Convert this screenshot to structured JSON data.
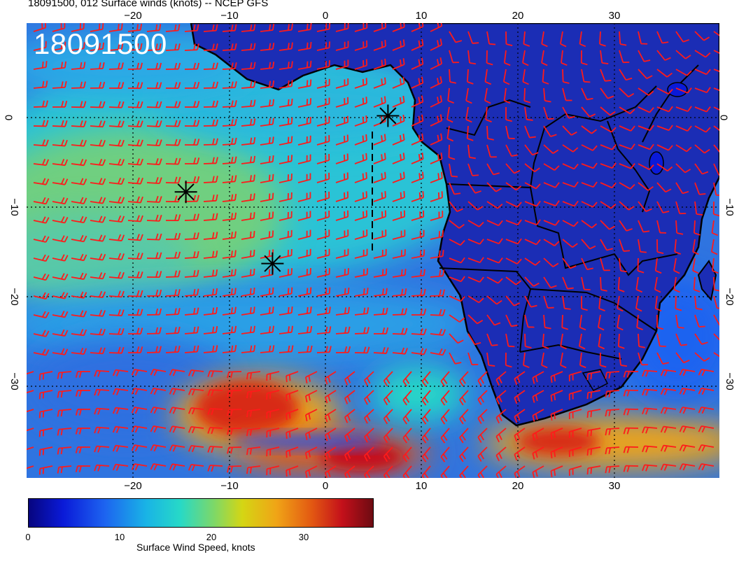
{
  "header": {
    "title": "18091500, 012 Surface winds (knots) -- NCEP GFS"
  },
  "map": {
    "time_label": "18091500",
    "lon_ticks_top": [
      "−20",
      "−10",
      "0",
      "10",
      "20",
      "30"
    ],
    "lon_ticks_bottom": [
      "−20",
      "−10",
      "0",
      "10",
      "20",
      "30"
    ],
    "lat_ticks_left": [
      "0",
      "−10",
      "−20",
      "−30"
    ],
    "lat_ticks_right": [
      "0",
      "−10",
      "−20",
      "−30"
    ],
    "barb_color": "#ff1a1a",
    "land_color": "#1a2fb0",
    "markers": [
      {
        "lon": 6.5,
        "lat": 0.2
      },
      {
        "lon": -14.5,
        "lat": -8.3
      },
      {
        "lon": -5.5,
        "lat": -16.3
      }
    ]
  },
  "colorbar": {
    "ticks": [
      "0",
      "10",
      "20",
      "30"
    ],
    "label": "Surface Wind Speed, knots",
    "colors": [
      "#07057f",
      "#0a1ad8",
      "#1d63f0",
      "#19b3e6",
      "#27d9c7",
      "#7fd866",
      "#d4d614",
      "#f0a416",
      "#e35a12",
      "#c4101a",
      "#6d0b12"
    ]
  }
}
